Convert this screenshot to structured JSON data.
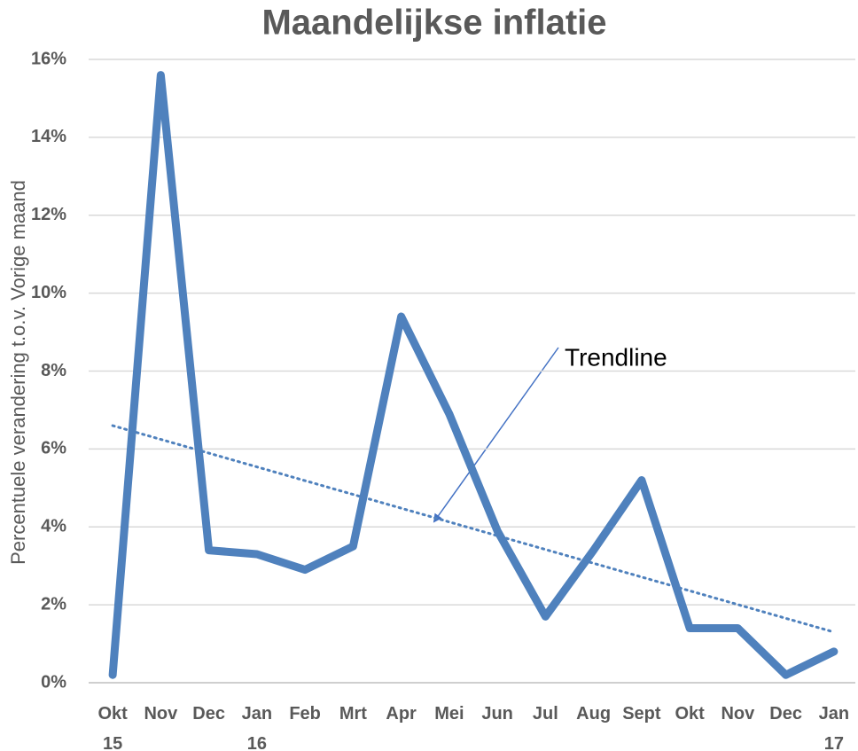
{
  "chart_data": {
    "type": "line",
    "title": "Maandelijkse inflatie",
    "y_label": "Percentuele verandering t.o.v. Vorige maand",
    "categories": [
      "Okt 15",
      "Nov",
      "Dec",
      "Jan 16",
      "Feb",
      "Mrt",
      "Apr",
      "Mei",
      "Jun",
      "Jul",
      "Aug",
      "Sept",
      "Okt",
      "Nov",
      "Dec",
      "Jan 17"
    ],
    "series": [
      {
        "color": "#4f81bd",
        "values": [
          0.2,
          15.6,
          3.4,
          3.3,
          2.9,
          3.5,
          9.4,
          6.9,
          3.9,
          1.7,
          3.4,
          5.2,
          1.4,
          1.4,
          0.2,
          0.8
        ]
      }
    ],
    "trendline": {
      "color": "#4f81bd",
      "style": "dotted",
      "values": [
        6.6,
        1.3
      ]
    },
    "annotation": "Trendline",
    "ylim": [
      0,
      16
    ],
    "yticks": [
      {
        "value": 0,
        "label": "0%"
      },
      {
        "value": 2,
        "label": "2%"
      },
      {
        "value": 4,
        "label": "4%"
      },
      {
        "value": 6,
        "label": "6%"
      },
      {
        "value": 8,
        "label": "8%"
      },
      {
        "value": 10,
        "label": "10%"
      },
      {
        "value": 12,
        "label": "12%"
      },
      {
        "value": 14,
        "label": "14%"
      },
      {
        "value": 16,
        "label": "16%"
      }
    ],
    "grid": true
  }
}
